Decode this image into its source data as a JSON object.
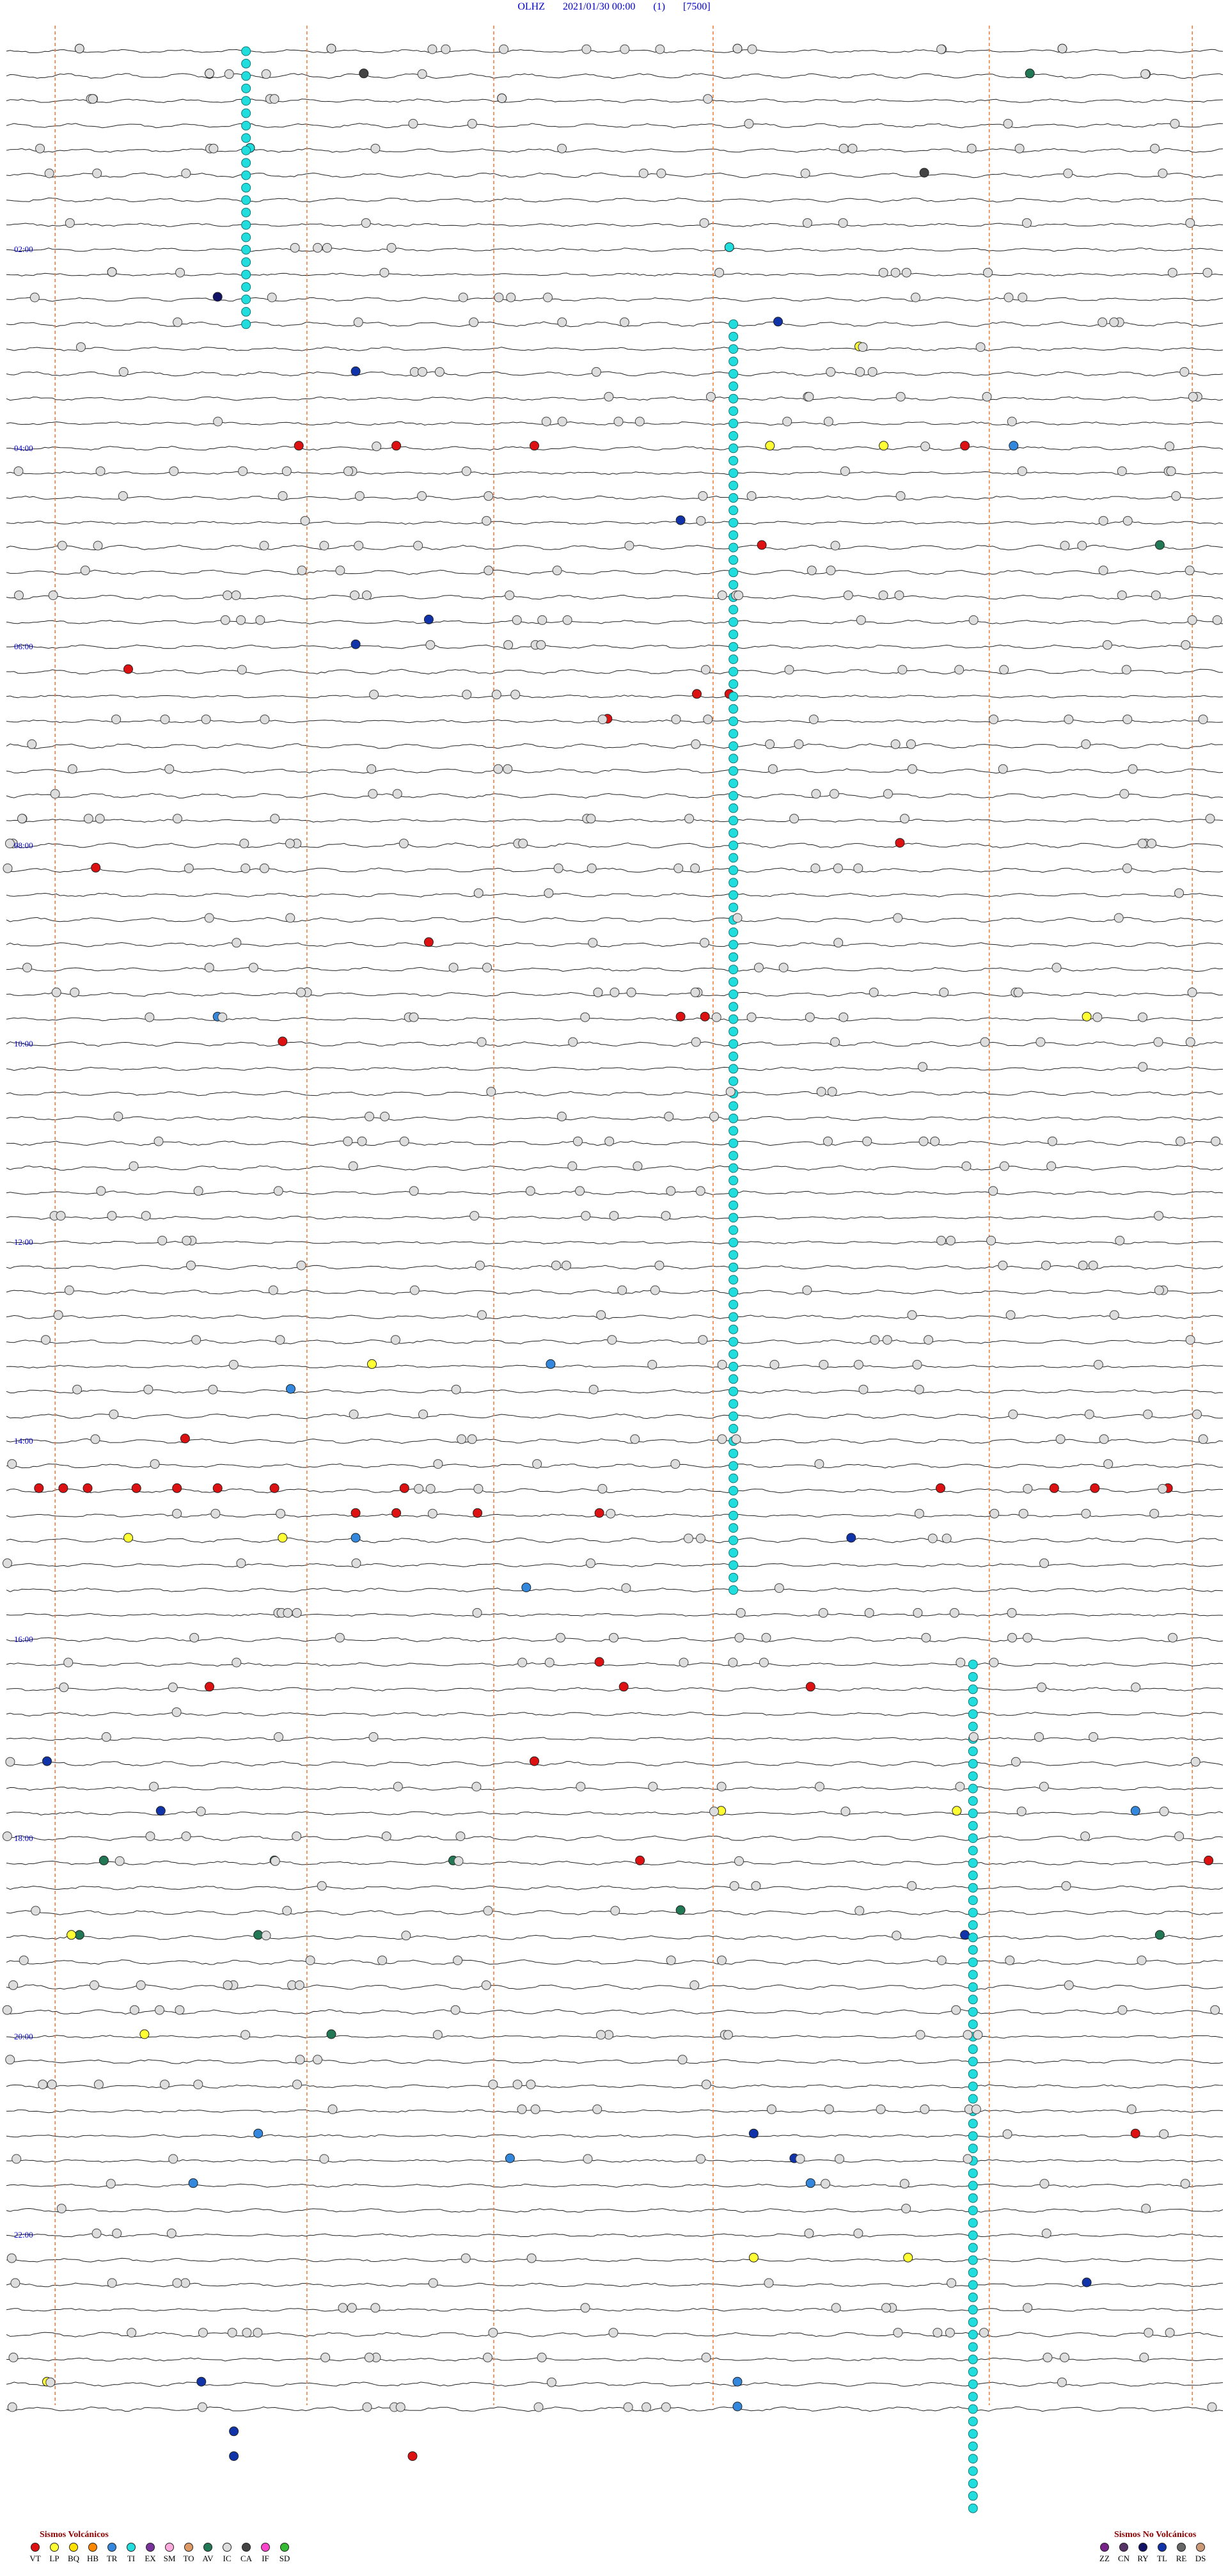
{
  "header": {
    "station": "OLHZ",
    "datetime": "2021/01/30 00:00",
    "channel": "(1)",
    "scale": "[7500]"
  },
  "hour_labels": [
    "02:00",
    "04:00",
    "06:00",
    "08:00",
    "10:00",
    "12:00",
    "14:00",
    "16:00",
    "18:00",
    "20:00",
    "22:00"
  ],
  "legend_volcanic": {
    "title": "Sismos Volcánicos",
    "items": [
      {
        "code": "VT",
        "color": "#dd1111"
      },
      {
        "code": "LP",
        "color": "#ffff33"
      },
      {
        "code": "BQ",
        "color": "#ffe000"
      },
      {
        "code": "HB",
        "color": "#ff8800"
      },
      {
        "code": "TR",
        "color": "#3388dd"
      },
      {
        "code": "TI",
        "color": "#22dddd"
      },
      {
        "code": "EX",
        "color": "#773399"
      },
      {
        "code": "SM",
        "color": "#ffaadd"
      },
      {
        "code": "TO",
        "color": "#dd9966"
      },
      {
        "code": "AV",
        "color": "#227755"
      },
      {
        "code": "IC",
        "color": "#dddddd"
      },
      {
        "code": "CA",
        "color": "#444444"
      },
      {
        "code": "IF",
        "color": "#ff44cc"
      },
      {
        "code": "SD",
        "color": "#33bb33"
      }
    ]
  },
  "legend_nonvolcanic": {
    "title": "Sismos No Volcánicos",
    "items": [
      {
        "code": "ZZ",
        "color": "#772288"
      },
      {
        "code": "CN",
        "color": "#553366"
      },
      {
        "code": "RY",
        "color": "#111166"
      },
      {
        "code": "TL",
        "color": "#1133aa"
      },
      {
        "code": "RE",
        "color": "#666666"
      },
      {
        "code": "DS",
        "color": "#cc9977"
      }
    ]
  },
  "chart_data": {
    "type": "scatter",
    "title": "OLHZ 2021/01/30 00:00 (1) [7500]",
    "xlabel": "",
    "ylabel": "",
    "traces_per_hour": 4,
    "hours": 24,
    "minutes_per_trace": 15,
    "time_markers_minutes": [
      0.6,
      3.7,
      6.0,
      8.7,
      12.1,
      14.6
    ],
    "events": [
      {
        "type": "IC",
        "trace": 0,
        "minute": 0.9
      },
      {
        "type": "IC",
        "trace": 0,
        "minute": 4.0
      },
      {
        "type": "IC",
        "trace": 0,
        "minute": 9.0
      },
      {
        "type": "IC",
        "trace": 0,
        "minute": 13.0
      },
      {
        "type": "IC",
        "trace": 1,
        "minute": 2.5
      },
      {
        "type": "CA",
        "trace": 1,
        "minute": 4.4
      },
      {
        "type": "AV",
        "trace": 1,
        "minute": 12.6
      },
      {
        "type": "IC",
        "trace": 2,
        "minute": 6.1
      },
      {
        "type": "TI",
        "trace": 4,
        "minute": 3.0
      },
      {
        "type": "CA",
        "trace": 5,
        "minute": 11.3
      },
      {
        "type": "TI",
        "trace": 8,
        "minute": 8.9
      },
      {
        "type": "IC",
        "trace": 9,
        "minute": 1.3
      },
      {
        "type": "RY",
        "trace": 10,
        "minute": 2.6
      },
      {
        "type": "TL",
        "trace": 11,
        "minute": 9.5
      },
      {
        "type": "LP",
        "trace": 12,
        "minute": 10.5
      },
      {
        "type": "TL",
        "trace": 13,
        "minute": 4.3
      },
      {
        "type": "VT",
        "trace": 16,
        "minute": 3.6
      },
      {
        "type": "VT",
        "trace": 16,
        "minute": 4.8
      },
      {
        "type": "VT",
        "trace": 16,
        "minute": 6.5
      },
      {
        "type": "LP",
        "trace": 16,
        "minute": 9.4
      },
      {
        "type": "LP",
        "trace": 16,
        "minute": 10.8
      },
      {
        "type": "VT",
        "trace": 16,
        "minute": 11.8
      },
      {
        "type": "TR",
        "trace": 16,
        "minute": 12.4
      },
      {
        "type": "TL",
        "trace": 19,
        "minute": 8.3
      },
      {
        "type": "VT",
        "trace": 20,
        "minute": 9.3
      },
      {
        "type": "AV",
        "trace": 20,
        "minute": 14.2
      },
      {
        "type": "TL",
        "trace": 23,
        "minute": 5.2
      },
      {
        "type": "TL",
        "trace": 24,
        "minute": 4.3
      },
      {
        "type": "VT",
        "trace": 25,
        "minute": 1.5
      },
      {
        "type": "VT",
        "trace": 26,
        "minute": 8.5
      },
      {
        "type": "VT",
        "trace": 26,
        "minute": 8.9
      },
      {
        "type": "VT",
        "trace": 27,
        "minute": 7.4
      },
      {
        "type": "VT",
        "trace": 32,
        "minute": 11.0
      },
      {
        "type": "VT",
        "trace": 33,
        "minute": 1.1
      },
      {
        "type": "VT",
        "trace": 36,
        "minute": 5.2
      },
      {
        "type": "TR",
        "trace": 39,
        "minute": 2.6
      },
      {
        "type": "VT",
        "trace": 39,
        "minute": 8.3
      },
      {
        "type": "VT",
        "trace": 39,
        "minute": 8.6
      },
      {
        "type": "LP",
        "trace": 39,
        "minute": 13.3
      },
      {
        "type": "VT",
        "trace": 40,
        "minute": 3.4
      },
      {
        "type": "LP",
        "trace": 53,
        "minute": 4.5
      },
      {
        "type": "TR",
        "trace": 53,
        "minute": 6.7
      },
      {
        "type": "TR",
        "trace": 54,
        "minute": 3.5
      },
      {
        "type": "VT",
        "trace": 56,
        "minute": 2.2
      },
      {
        "type": "VT",
        "trace": 58,
        "minute": 0.4
      },
      {
        "type": "VT",
        "trace": 58,
        "minute": 0.7
      },
      {
        "type": "VT",
        "trace": 58,
        "minute": 1.0
      },
      {
        "type": "VT",
        "trace": 58,
        "minute": 1.6
      },
      {
        "type": "VT",
        "trace": 58,
        "minute": 2.1
      },
      {
        "type": "VT",
        "trace": 58,
        "minute": 2.6
      },
      {
        "type": "VT",
        "trace": 58,
        "minute": 3.3
      },
      {
        "type": "VT",
        "trace": 58,
        "minute": 4.9
      },
      {
        "type": "VT",
        "trace": 58,
        "minute": 11.5
      },
      {
        "type": "VT",
        "trace": 58,
        "minute": 12.9
      },
      {
        "type": "VT",
        "trace": 58,
        "minute": 13.4
      },
      {
        "type": "VT",
        "trace": 58,
        "minute": 14.3
      },
      {
        "type": "VT",
        "trace": 59,
        "minute": 4.3
      },
      {
        "type": "VT",
        "trace": 59,
        "minute": 4.8
      },
      {
        "type": "VT",
        "trace": 59,
        "minute": 5.8
      },
      {
        "type": "VT",
        "trace": 59,
        "minute": 7.3
      },
      {
        "type": "LP",
        "trace": 60,
        "minute": 1.5
      },
      {
        "type": "LP",
        "trace": 60,
        "minute": 3.4
      },
      {
        "type": "TR",
        "trace": 60,
        "minute": 4.3
      },
      {
        "type": "TL",
        "trace": 60,
        "minute": 10.4
      },
      {
        "type": "TR",
        "trace": 62,
        "minute": 6.4
      },
      {
        "type": "VT",
        "trace": 65,
        "minute": 7.3
      },
      {
        "type": "VT",
        "trace": 66,
        "minute": 2.5
      },
      {
        "type": "VT",
        "trace": 66,
        "minute": 7.6
      },
      {
        "type": "VT",
        "trace": 66,
        "minute": 9.9
      },
      {
        "type": "TL",
        "trace": 69,
        "minute": 0.5
      },
      {
        "type": "VT",
        "trace": 69,
        "minute": 6.5
      },
      {
        "type": "TL",
        "trace": 71,
        "minute": 1.9
      },
      {
        "type": "LP",
        "trace": 71,
        "minute": 8.8
      },
      {
        "type": "LP",
        "trace": 71,
        "minute": 11.7
      },
      {
        "type": "TR",
        "trace": 71,
        "minute": 13.9
      },
      {
        "type": "AV",
        "trace": 73,
        "minute": 1.2
      },
      {
        "type": "AV",
        "trace": 73,
        "minute": 3.3
      },
      {
        "type": "AV",
        "trace": 73,
        "minute": 5.5
      },
      {
        "type": "VT",
        "trace": 73,
        "minute": 7.8
      },
      {
        "type": "VT",
        "trace": 73,
        "minute": 14.8
      },
      {
        "type": "AV",
        "trace": 75,
        "minute": 8.3
      },
      {
        "type": "AV",
        "trace": 76,
        "minute": 0.9
      },
      {
        "type": "AV",
        "trace": 76,
        "minute": 3.1
      },
      {
        "type": "LP",
        "trace": 76,
        "minute": 0.8
      },
      {
        "type": "TL",
        "trace": 76,
        "minute": 11.8
      },
      {
        "type": "AV",
        "trace": 76,
        "minute": 14.2
      },
      {
        "type": "LP",
        "trace": 80,
        "minute": 1.7
      },
      {
        "type": "AV",
        "trace": 80,
        "minute": 4.0
      },
      {
        "type": "TR",
        "trace": 84,
        "minute": 3.1
      },
      {
        "type": "TL",
        "trace": 84,
        "minute": 9.2
      },
      {
        "type": "VT",
        "trace": 84,
        "minute": 13.9
      },
      {
        "type": "TR",
        "trace": 85,
        "minute": 6.2
      },
      {
        "type": "TL",
        "trace": 85,
        "minute": 9.7
      },
      {
        "type": "TR",
        "trace": 86,
        "minute": 2.3
      },
      {
        "type": "TR",
        "trace": 86,
        "minute": 9.9
      },
      {
        "type": "LP",
        "trace": 89,
        "minute": 9.2
      },
      {
        "type": "LP",
        "trace": 89,
        "minute": 11.1
      },
      {
        "type": "TL",
        "trace": 90,
        "minute": 13.3
      },
      {
        "type": "TL",
        "trace": 94,
        "minute": 2.4
      },
      {
        "type": "LP",
        "trace": 94,
        "minute": 0.5
      },
      {
        "type": "TR",
        "trace": 94,
        "minute": 9.0
      },
      {
        "type": "TR",
        "trace": 95,
        "minute": 9.0
      },
      {
        "type": "TL",
        "trace": 96,
        "minute": 2.8
      },
      {
        "type": "TL",
        "trace": 97,
        "minute": 2.8
      },
      {
        "type": "VT",
        "trace": 97,
        "minute": 5.0
      }
    ],
    "ti_swarms": [
      {
        "trace_start": 0,
        "trace_end": 11,
        "minute": 2.95
      },
      {
        "trace_start": 11,
        "trace_end": 62,
        "minute": 8.95
      },
      {
        "trace_start": 65,
        "trace_end": 99,
        "minute": 11.9
      }
    ]
  }
}
